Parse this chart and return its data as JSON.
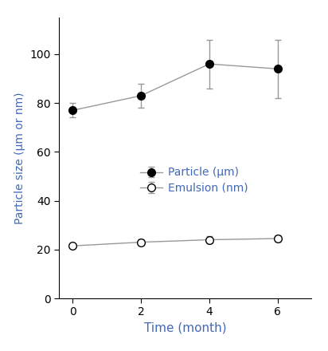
{
  "time": [
    0,
    2,
    4,
    6
  ],
  "particle_mean": [
    77,
    83,
    96,
    94
  ],
  "particle_err": [
    3,
    5,
    10,
    12
  ],
  "emulsion_mean": [
    21.5,
    23,
    24,
    24.5
  ],
  "emulsion_err": [
    0.8,
    1.2,
    1.5,
    1.2
  ],
  "xlabel": "Time (month)",
  "ylabel": "Particle size (μm or nm)",
  "legend_particle": "Particle (μm)",
  "legend_emulsion": "Emulsion (nm)",
  "xlim": [
    -0.4,
    7.0
  ],
  "ylim": [
    0,
    115
  ],
  "yticks": [
    0,
    20,
    40,
    60,
    80,
    100
  ],
  "xticks": [
    0,
    2,
    4,
    6
  ],
  "label_color": "#4169b8",
  "tick_label_color": "#000000",
  "line_color": "#999999",
  "marker_color_particle": "#000000",
  "marker_color_emulsion": "#ffffff",
  "background_color": "#ffffff",
  "marker_edge_color": "#000000",
  "markersize": 7,
  "linewidth": 1.0,
  "elinewidth": 1.0,
  "capsize": 3,
  "capthick": 1.0,
  "xlabel_fontsize": 11,
  "ylabel_fontsize": 10,
  "tick_fontsize": 10,
  "legend_fontsize": 10
}
